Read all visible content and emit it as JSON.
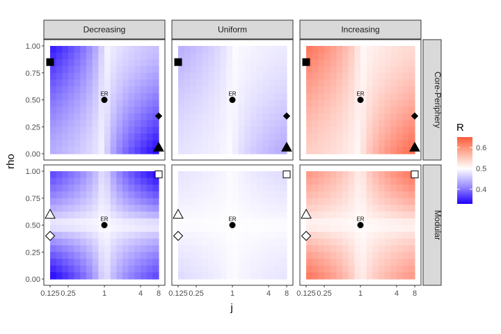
{
  "chart_data": {
    "type": "heatmap",
    "xlabel": "j",
    "ylabel": "rho",
    "x_scale": "log2",
    "x_ticks": [
      0.125,
      0.25,
      1,
      4,
      8
    ],
    "x_tick_labels": [
      "0.125",
      "0.25",
      "1",
      "4",
      "8"
    ],
    "y_ticks": [
      0,
      0.25,
      0.5,
      0.75,
      1
    ],
    "y_tick_labels": [
      "0.00",
      "0.25",
      "0.50",
      "0.75",
      "1.00"
    ],
    "xlim": [
      0.125,
      8
    ],
    "ylim": [
      0,
      1
    ],
    "column_facets": [
      "Decreasing",
      "Uniform",
      "Increasing"
    ],
    "row_facets": [
      "Core-Periphery",
      "Modular"
    ],
    "legend": {
      "title": "R",
      "position": "right",
      "range": [
        0.33,
        0.65
      ],
      "ticks": [
        0.4,
        0.5,
        0.6
      ],
      "tick_labels": [
        "0.4",
        "0.5",
        "0.6"
      ],
      "low_color": "#1f00ff",
      "mid_color": "#ffffff",
      "high_color": "#ff5a3c",
      "midpoint": 0.5
    },
    "panels": [
      {
        "row": "Core-Periphery",
        "col": "Decreasing",
        "amplitude": -0.17,
        "pattern": "core-periphery"
      },
      {
        "row": "Core-Periphery",
        "col": "Uniform",
        "amplitude": -0.06,
        "pattern": "core-periphery"
      },
      {
        "row": "Core-Periphery",
        "col": "Increasing",
        "amplitude": 0.14,
        "pattern": "core-periphery"
      },
      {
        "row": "Modular",
        "col": "Decreasing",
        "amplitude": -0.17,
        "pattern": "modular"
      },
      {
        "row": "Modular",
        "col": "Uniform",
        "amplitude": -0.025,
        "pattern": "modular"
      },
      {
        "row": "Modular",
        "col": "Increasing",
        "amplitude": 0.13,
        "pattern": "modular"
      }
    ],
    "markers": {
      "Core-Periphery": [
        {
          "shape": "square",
          "filled": true,
          "j": 0.125,
          "rho": 0.85
        },
        {
          "shape": "circle",
          "filled": true,
          "j": 1,
          "rho": 0.5,
          "label": "ER"
        },
        {
          "shape": "diamond",
          "filled": true,
          "j": 8,
          "rho": 0.35
        },
        {
          "shape": "triangle",
          "filled": true,
          "j": 8,
          "rho": 0.06
        }
      ],
      "Modular": [
        {
          "shape": "square",
          "filled": false,
          "j": 8,
          "rho": 0.97
        },
        {
          "shape": "triangle",
          "filled": false,
          "j": 0.125,
          "rho": 0.6
        },
        {
          "shape": "circle",
          "filled": true,
          "j": 1,
          "rho": 0.5,
          "label": "ER"
        },
        {
          "shape": "diamond",
          "filled": false,
          "j": 0.125,
          "rho": 0.4
        }
      ]
    },
    "grid": false,
    "panel_border": true
  }
}
